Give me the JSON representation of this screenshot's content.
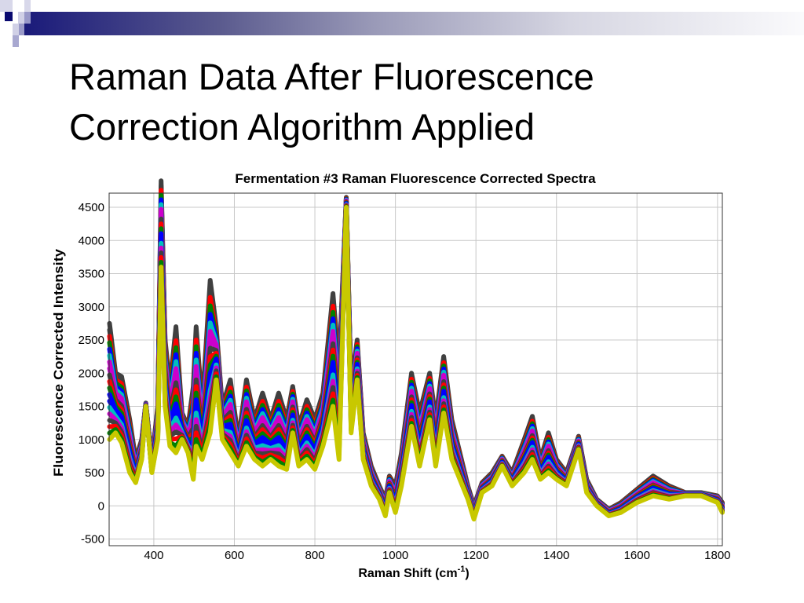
{
  "slide": {
    "title_line1": "Raman Data After Fluorescence",
    "title_line2": "Correction Algorithm Applied",
    "banner_color": "#1a1a7a"
  },
  "chart_data": {
    "type": "line",
    "title": "Fermentation #3 Raman Fluorescence Corrected Spectra",
    "xlabel": "Raman Shift (cm",
    "xlabel_sup": "-1",
    "xlabel_end": ")",
    "ylabel": "Fluorescence Corrected Intensity",
    "xlim": [
      289,
      1812
    ],
    "ylim": [
      -600,
      4713
    ],
    "grid": true,
    "xticks": [
      400,
      600,
      800,
      1000,
      1200,
      1400,
      1600,
      1800
    ],
    "yticks": [
      -500,
      0,
      500,
      1000,
      1500,
      2000,
      2500,
      3000,
      3500,
      4000,
      4500
    ],
    "x": [
      290,
      305,
      320,
      340,
      355,
      370,
      380,
      395,
      410,
      418,
      428,
      440,
      455,
      470,
      485,
      498,
      505,
      520,
      540,
      555,
      570,
      590,
      610,
      630,
      650,
      670,
      690,
      710,
      730,
      745,
      760,
      780,
      800,
      820,
      845,
      860,
      878,
      890,
      905,
      920,
      940,
      960,
      975,
      985,
      1000,
      1015,
      1040,
      1060,
      1085,
      1100,
      1120,
      1140,
      1160,
      1180,
      1195,
      1215,
      1240,
      1265,
      1290,
      1320,
      1340,
      1360,
      1380,
      1400,
      1425,
      1455,
      1475,
      1500,
      1530,
      1560,
      1600,
      1640,
      1680,
      1720,
      1760,
      1800,
      1812
    ],
    "series": [
      {
        "color": "#404040",
        "values": [
          2750,
          2000,
          1950,
          1300,
          700,
          1000,
          1550,
          700,
          1500,
          4900,
          2500,
          1800,
          2700,
          1400,
          1200,
          1800,
          2700,
          1500,
          3400,
          2700,
          1500,
          1900,
          1000,
          1900,
          1300,
          1700,
          1300,
          1700,
          1300,
          1800,
          1200,
          1600,
          1300,
          1700,
          3200,
          2100,
          4650,
          1800,
          2500,
          1100,
          600,
          300,
          100,
          450,
          300,
          800,
          2000,
          1400,
          2000,
          1300,
          2250,
          1300,
          800,
          300,
          0,
          350,
          500,
          750,
          500,
          1000,
          1350,
          700,
          1100,
          700,
          500,
          1050,
          400,
          100,
          -50,
          50,
          250,
          450,
          300,
          200,
          200,
          150,
          50
        ]
      },
      {
        "color": "#cc00cc",
        "values": [
          2170,
          1700,
          1620,
          1030,
          580,
          900,
          1530,
          630,
          1330,
          4470,
          2170,
          1500,
          2070,
          1270,
          1070,
          1330,
          2100,
          1230,
          2630,
          2430,
          1330,
          1530,
          870,
          1570,
          1100,
          1330,
          1100,
          1330,
          1050,
          1570,
          1000,
          1300,
          1050,
          1430,
          2630,
          1630,
          4600,
          1570,
          2300,
          970,
          500,
          230,
          20,
          370,
          170,
          630,
          1730,
          1130,
          1770,
          1070,
          1970,
          1100,
          670,
          230,
          -70,
          300,
          430,
          700,
          430,
          830,
          1130,
          600,
          900,
          600,
          430,
          980,
          330,
          70,
          -80,
          0,
          180,
          350,
          230,
          180,
          180,
          120,
          0
        ]
      },
      {
        "color": "#0000ff",
        "values": [
          1580,
          1400,
          1280,
          770,
          470,
          800,
          1520,
          570,
          1170,
          4030,
          1830,
          1200,
          1430,
          1130,
          930,
          870,
          1500,
          970,
          1870,
          2170,
          1170,
          1170,
          730,
          1230,
          900,
          970,
          900,
          970,
          800,
          1330,
          800,
          1000,
          800,
          1170,
          2070,
          1170,
          4550,
          1330,
          2100,
          830,
          400,
          170,
          -70,
          280,
          30,
          470,
          1470,
          870,
          1530,
          830,
          1680,
          900,
          530,
          170,
          -130,
          250,
          370,
          650,
          370,
          670,
          920,
          500,
          700,
          500,
          370,
          920,
          270,
          30,
          -120,
          -50,
          120,
          250,
          170,
          170,
          170,
          80,
          -50
        ]
      },
      {
        "color": "#c8c800",
        "values": [
          1000,
          1100,
          950,
          500,
          350,
          700,
          1500,
          500,
          1000,
          3600,
          1500,
          900,
          800,
          1000,
          800,
          400,
          900,
          700,
          1100,
          1900,
          1000,
          800,
          600,
          900,
          700,
          600,
          700,
          600,
          550,
          1100,
          600,
          700,
          550,
          900,
          1500,
          700,
          4500,
          1100,
          1900,
          700,
          300,
          100,
          -150,
          200,
          -100,
          300,
          1200,
          600,
          1300,
          600,
          1400,
          700,
          400,
          100,
          -200,
          200,
          300,
          600,
          300,
          500,
          700,
          400,
          500,
          400,
          300,
          850,
          200,
          0,
          -150,
          -100,
          50,
          150,
          100,
          150,
          150,
          50,
          -100
        ]
      }
    ]
  }
}
